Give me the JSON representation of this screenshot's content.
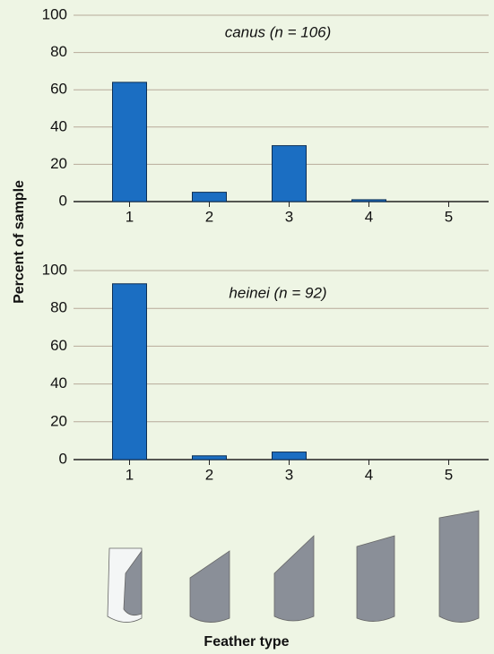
{
  "chart_data": [
    {
      "type": "bar",
      "title": "canus (n = 106)",
      "ylabel": "Percent of sample",
      "categories": [
        "1",
        "2",
        "3",
        "4",
        "5"
      ],
      "values": [
        64,
        5,
        30,
        1,
        0
      ],
      "color": "#1b6ec2",
      "ylim": [
        0,
        100
      ],
      "yticks": [
        0,
        20,
        40,
        60,
        80,
        100
      ],
      "grid": true
    },
    {
      "type": "bar",
      "title": "heinei (n = 92)",
      "xlabel": "Feather type",
      "categories": [
        "1",
        "2",
        "3",
        "4",
        "5"
      ],
      "values": [
        93,
        2,
        4,
        0,
        0
      ],
      "color": "#1b6ec2",
      "ylim": [
        0,
        100
      ],
      "yticks": [
        0,
        20,
        40,
        60,
        80,
        100
      ],
      "grid": true
    }
  ]
}
